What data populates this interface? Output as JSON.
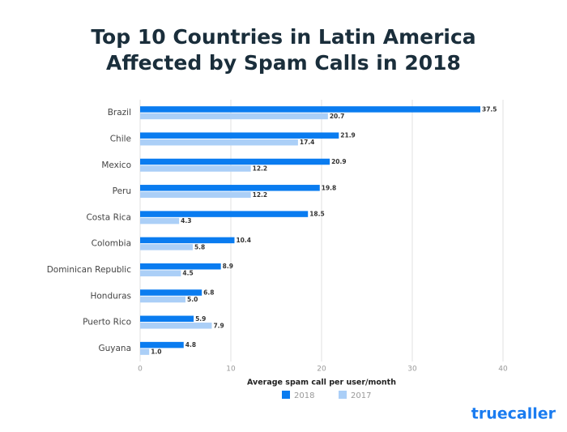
{
  "chart_data": {
    "type": "hbar",
    "title": [
      "Top 10 Countries in Latin America",
      "Affected by Spam Calls in 2018"
    ],
    "categories": [
      "Brazil",
      "Chile",
      "Mexico",
      "Peru",
      "Costa Rica",
      "Colombia",
      "Dominican Republic",
      "Honduras",
      "Puerto Rico",
      "Guyana"
    ],
    "series": [
      {
        "name": "2018",
        "color": "#0a7cf0",
        "values": [
          37.5,
          21.9,
          20.9,
          19.8,
          18.5,
          10.4,
          8.9,
          6.8,
          5.9,
          4.8
        ]
      },
      {
        "name": "2017",
        "color": "#abcff7",
        "values": [
          20.7,
          17.4,
          12.2,
          12.2,
          4.3,
          5.8,
          4.5,
          5,
          7.9,
          1
        ],
        "value_labels": [
          "20.7",
          "17.4",
          "12.2",
          "12.2",
          "4.3",
          "5.8",
          "4.5",
          "5.0",
          "7.9",
          "1.0"
        ]
      }
    ],
    "xlabel": "Average spam call per user/month",
    "xlim": [
      0,
      40
    ],
    "xticks": [
      0,
      10,
      20,
      30,
      40
    ],
    "grid": true,
    "legend": "bottom",
    "logo": "truecaller"
  }
}
